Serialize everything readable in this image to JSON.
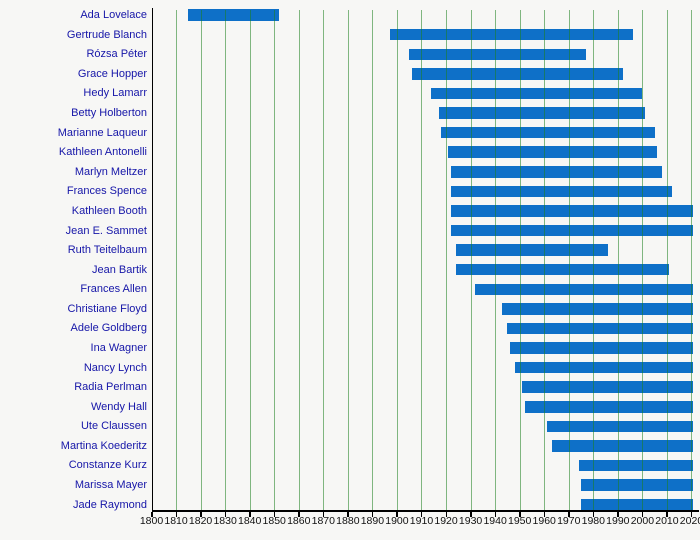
{
  "page": {
    "background": "#f7f7f5"
  },
  "chart_data": {
    "type": "bar",
    "variant": "horizontal-lifespan-timeline",
    "title": "",
    "xlabel": "",
    "ylabel": "",
    "xlim": [
      1800,
      2022.5
    ],
    "x_tick_step": 10,
    "x_ticks": [
      1800,
      1810,
      1820,
      1830,
      1840,
      1850,
      1860,
      1870,
      1880,
      1890,
      1900,
      1910,
      1920,
      1930,
      1940,
      1950,
      1960,
      1970,
      1980,
      1990,
      2000,
      2010,
      2020
    ],
    "grid": "vertical decade gridlines over bars",
    "legend": "none",
    "living_bar_end": 2020.6,
    "colors": {
      "background": "#f7f7f5",
      "bar": "#0e70c8",
      "grid_line_rgba": "rgba(30,130,30,0.55)",
      "label_text": "#1616a8",
      "tick_text": "#111111",
      "axis": "#000000"
    },
    "people": [
      {
        "name": "Ada Lovelace",
        "start": 1815,
        "end": 1852
      },
      {
        "name": "Gertrude Blanch",
        "start": 1897,
        "end": 1996
      },
      {
        "name": "Rózsa Péter",
        "start": 1905,
        "end": 1977
      },
      {
        "name": "Grace Hopper",
        "start": 1906,
        "end": 1992
      },
      {
        "name": "Hedy Lamarr",
        "start": 1914,
        "end": 2000
      },
      {
        "name": "Betty Holberton",
        "start": 1917,
        "end": 2001
      },
      {
        "name": "Marianne Laqueur",
        "start": 1918,
        "end": 2005
      },
      {
        "name": "Kathleen Antonelli",
        "start": 1921,
        "end": 2006
      },
      {
        "name": "Marlyn Meltzer",
        "start": 1922,
        "end": 2008
      },
      {
        "name": "Frances Spence",
        "start": 1922,
        "end": 2012
      },
      {
        "name": "Kathleen Booth",
        "start": 1922,
        "end": null
      },
      {
        "name": "Jean E. Sammet",
        "start": 1922,
        "end": null
      },
      {
        "name": "Ruth Teitelbaum",
        "start": 1924,
        "end": 1986
      },
      {
        "name": "Jean Bartik",
        "start": 1924,
        "end": 2011
      },
      {
        "name": "Frances Allen",
        "start": 1932,
        "end": null
      },
      {
        "name": "Christiane Floyd",
        "start": 1943,
        "end": null
      },
      {
        "name": "Adele Goldberg",
        "start": 1945,
        "end": null
      },
      {
        "name": "Ina Wagner",
        "start": 1946,
        "end": null
      },
      {
        "name": "Nancy Lynch",
        "start": 1948,
        "end": null
      },
      {
        "name": "Radia Perlman",
        "start": 1951,
        "end": null
      },
      {
        "name": "Wendy Hall",
        "start": 1952,
        "end": null
      },
      {
        "name": "Ute Claussen",
        "start": 1961,
        "end": null
      },
      {
        "name": "Martina Koederitz",
        "start": 1963,
        "end": null
      },
      {
        "name": "Constanze Kurz",
        "start": 1974,
        "end": null
      },
      {
        "name": "Marissa Mayer",
        "start": 1975,
        "end": null
      },
      {
        "name": "Jade Raymond",
        "start": 1975,
        "end": null
      }
    ]
  }
}
